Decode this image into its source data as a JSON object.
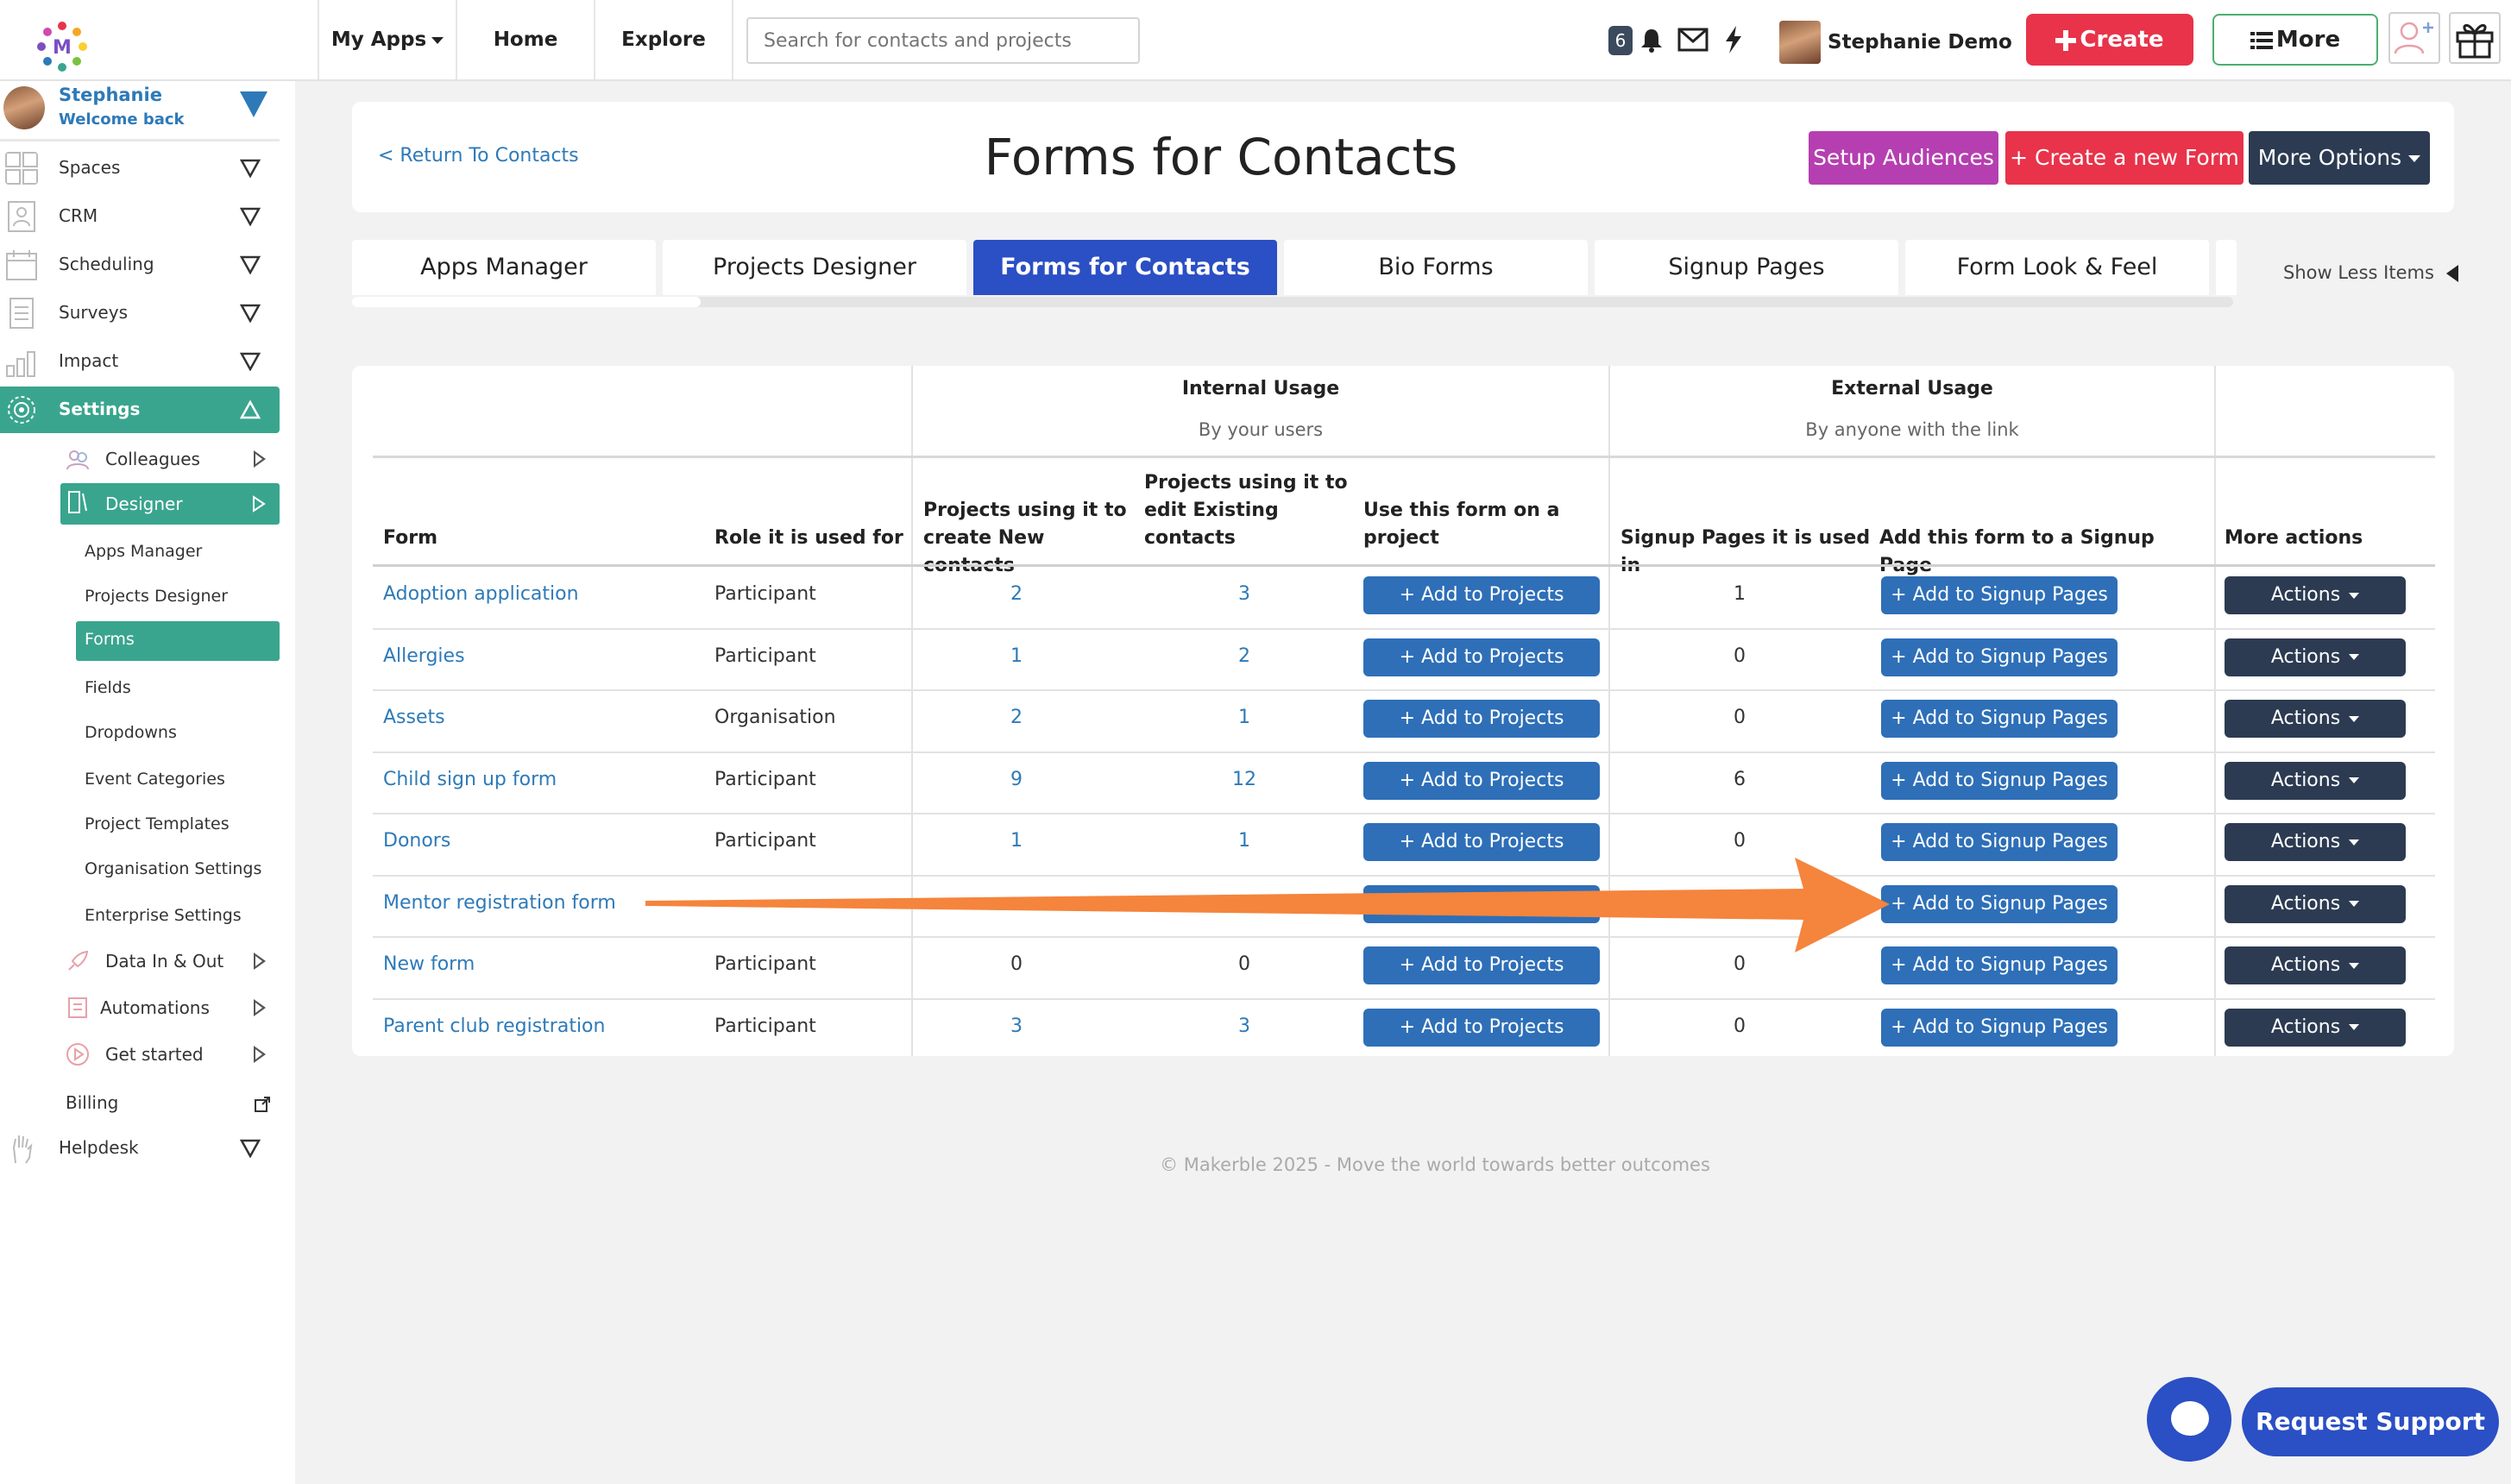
{
  "topbar": {
    "my_apps": "My Apps",
    "home": "Home",
    "explore": "Explore",
    "search_placeholder": "Search for contacts and projects",
    "notification_count": "6",
    "user_name": "Stephanie Demo",
    "create_label": "Create",
    "more_label": "More",
    "create_color": "#e8334a",
    "more_border_color": "#4caf6e"
  },
  "sidebar": {
    "user_name": "Stephanie",
    "welcome": "Welcome back",
    "sections": [
      {
        "label": "Spaces",
        "icon": "spaces-icon"
      },
      {
        "label": "CRM",
        "icon": "crm-icon"
      },
      {
        "label": "Scheduling",
        "icon": "calendar-icon"
      },
      {
        "label": "Surveys",
        "icon": "survey-icon"
      },
      {
        "label": "Impact",
        "icon": "impact-chart-icon"
      },
      {
        "label": "Settings",
        "icon": "settings-gear-icon"
      }
    ],
    "settings_items": [
      {
        "label": "Colleagues",
        "icon": "colleagues-icon"
      },
      {
        "label": "Designer",
        "icon": "designer-icon"
      }
    ],
    "designer_items": [
      "Apps Manager",
      "Projects Designer",
      "Forms",
      "Fields",
      "Dropdowns",
      "Event Categories",
      "Project Templates",
      "Organisation Settings",
      "Enterprise Settings"
    ],
    "bottom_items": [
      {
        "label": "Data In & Out",
        "icon": "rocket-icon"
      },
      {
        "label": "Automations",
        "icon": "automation-icon"
      },
      {
        "label": "Get started",
        "icon": "play-icon"
      }
    ],
    "billing": "Billing",
    "helpdesk": "Helpdesk",
    "accent_color": "#3aa58e"
  },
  "header": {
    "return_link": "< Return To Contacts",
    "title": "Forms for Contacts",
    "setup_audiences": "Setup Audiences",
    "create_form": "+ Create a new Form",
    "more_options": "More Options"
  },
  "tabs": [
    {
      "label": "Apps Manager",
      "active": false
    },
    {
      "label": "Projects Designer",
      "active": false
    },
    {
      "label": "Forms for Contacts",
      "active": true
    },
    {
      "label": "Bio Forms",
      "active": false
    },
    {
      "label": "Signup Pages",
      "active": false
    },
    {
      "label": "Form Look & Feel",
      "active": false
    }
  ],
  "show_less": "Show Less Items",
  "table": {
    "group_internal": "Internal Usage",
    "group_internal_sub": "By your users",
    "group_external": "External Usage",
    "group_external_sub": "By anyone with the link",
    "headers": {
      "form": "Form",
      "role": "Role it is used for",
      "projects_new": "Projects using it to create New contacts",
      "projects_edit": "Projects using it to edit Existing contacts",
      "use_on_project": "Use this form on a project",
      "signup_pages": "Signup Pages it is used in",
      "add_signup": "Add this form to a Signup Page",
      "more_actions": "More actions"
    },
    "add_projects_label": "+ Add to Projects",
    "add_signup_label": "+ Add to Signup Pages",
    "actions_label": "Actions",
    "rows": [
      {
        "form": "Adoption application",
        "role": "Participant",
        "new": "2",
        "edit": "3",
        "signup": "1",
        "new_link": true
      },
      {
        "form": "Allergies",
        "role": "Participant",
        "new": "1",
        "edit": "2",
        "signup": "0",
        "new_link": true
      },
      {
        "form": "Assets",
        "role": "Organisation",
        "new": "2",
        "edit": "1",
        "signup": "0",
        "new_link": true
      },
      {
        "form": "Child sign up form",
        "role": "Participant",
        "new": "9",
        "edit": "12",
        "signup": "6",
        "new_link": true
      },
      {
        "form": "Donors",
        "role": "Participant",
        "new": "1",
        "edit": "1",
        "signup": "0",
        "new_link": true
      },
      {
        "form": "Mentor registration form",
        "role": "",
        "new": "",
        "edit": "",
        "signup": "",
        "new_link": true
      },
      {
        "form": "New form",
        "role": "Participant",
        "new": "0",
        "edit": "0",
        "signup": "0",
        "new_link": false
      },
      {
        "form": "Parent club registration",
        "role": "Participant",
        "new": "3",
        "edit": "3",
        "signup": "0",
        "new_link": true
      }
    ]
  },
  "footer": "© Makerble 2025 - Move the world towards better outcomes",
  "support": {
    "request_support": "Request Support"
  },
  "annotation_arrow_color": "#f5843c"
}
